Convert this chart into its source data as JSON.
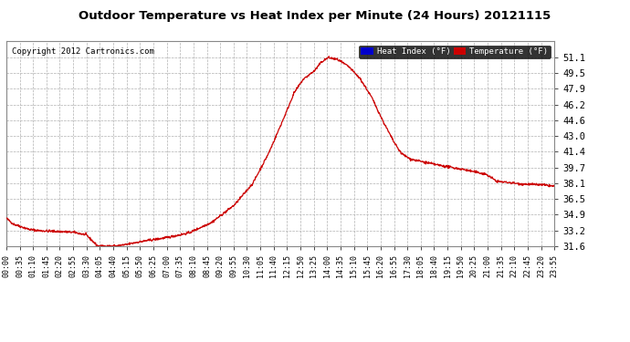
{
  "title": "Outdoor Temperature vs Heat Index per Minute (24 Hours) 20121115",
  "copyright": "Copyright 2012 Cartronics.com",
  "background_color": "#ffffff",
  "plot_bg_color": "#ffffff",
  "grid_color": "#b0b0b0",
  "line_color_temp": "#cc0000",
  "ylim": [
    31.6,
    52.8
  ],
  "yticks": [
    31.6,
    33.2,
    34.9,
    36.5,
    38.1,
    39.7,
    41.4,
    43.0,
    44.6,
    46.2,
    47.9,
    49.5,
    51.1
  ],
  "x_labels": [
    "00:00",
    "00:35",
    "01:10",
    "01:45",
    "02:20",
    "02:55",
    "03:30",
    "04:05",
    "04:40",
    "05:15",
    "05:50",
    "06:25",
    "07:00",
    "07:35",
    "08:10",
    "08:45",
    "09:20",
    "09:55",
    "10:30",
    "11:05",
    "11:40",
    "12:15",
    "12:50",
    "13:25",
    "14:00",
    "14:35",
    "15:10",
    "15:45",
    "16:20",
    "16:55",
    "17:30",
    "18:05",
    "18:40",
    "19:15",
    "19:50",
    "20:25",
    "21:00",
    "21:35",
    "22:10",
    "22:45",
    "23:20",
    "23:55"
  ],
  "legend_heat_label": "Heat Index (°F)",
  "legend_temp_label": "Temperature (°F)",
  "legend_heat_bg": "#0000cc",
  "legend_temp_bg": "#cc0000"
}
